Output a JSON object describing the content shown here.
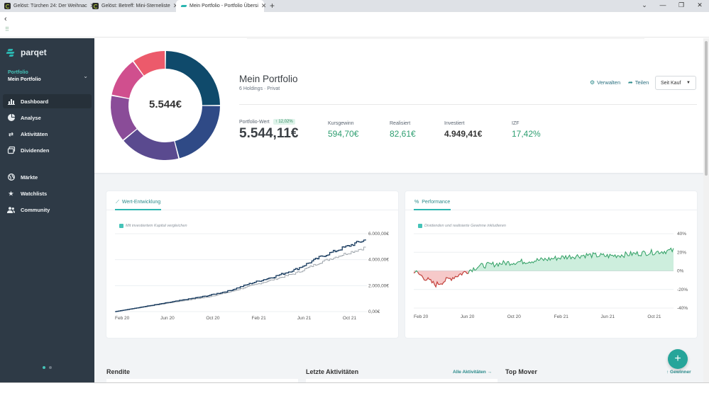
{
  "browser": {
    "tabs": [
      {
        "title": "Gelöst: Türchen 24: Der Weihnac",
        "icon": "community-favicon",
        "active": false
      },
      {
        "title": "Gelöst: Betreff: Mini-Sterneliste",
        "icon": "community-favicon",
        "active": false
      },
      {
        "title": "Mein Portfolio - Portfolio Übersi",
        "icon": "parqet-favicon",
        "active": true
      }
    ],
    "new_tab": "+",
    "back": "‹",
    "apps": "⠿"
  },
  "sidebar": {
    "logo": "parqet",
    "portfolio_label": "Portfolio",
    "portfolio_name": "Mein Portfolio",
    "items": [
      {
        "label": "Dashboard",
        "icon": "chart-bar-icon",
        "active": true
      },
      {
        "label": "Analyse",
        "icon": "pie-chart-icon",
        "active": false
      },
      {
        "label": "Aktivitäten",
        "icon": "transfer-icon",
        "active": false
      },
      {
        "label": "Dividenden",
        "icon": "stack-icon",
        "active": false
      },
      {
        "label": "Märkte",
        "icon": "globe-icon",
        "active": false
      },
      {
        "label": "Watchlists",
        "icon": "star-icon",
        "active": false
      },
      {
        "label": "Community",
        "icon": "users-icon",
        "active": false
      }
    ]
  },
  "header": {
    "donut_center": "5.544€",
    "title": "Mein Portfolio",
    "subtitle": "6 Holdings · Privat",
    "manage": "Verwalten",
    "share": "Teilen",
    "timeframe": "Seit Kauf"
  },
  "donut": {
    "slices": [
      {
        "share": 0.25,
        "color": "#0f4a6b"
      },
      {
        "share": 0.21,
        "color": "#2f4a86"
      },
      {
        "share": 0.18,
        "color": "#5a4a8f"
      },
      {
        "share": 0.14,
        "color": "#8a4c98"
      },
      {
        "share": 0.12,
        "color": "#d04f8e"
      },
      {
        "share": 0.1,
        "color": "#ec5a6b"
      }
    ]
  },
  "kpis": {
    "portfolio_value_label": "Portfolio-Wert",
    "portfolio_value_change": "↑ 12,02%",
    "portfolio_value": "5.544,11€",
    "kursgewinn_label": "Kursgewinn",
    "kursgewinn": "594,70€",
    "realisiert_label": "Realisiert",
    "realisiert": "82,61€",
    "investiert_label": "Investiert",
    "investiert": "4.949,41€",
    "izf_label": "IZF",
    "izf": "17,42%"
  },
  "value_card": {
    "tab": "Wert-Entwicklung",
    "checkbox": "Mit investiertem Kapital vergleichen"
  },
  "perf_card": {
    "tab": "Performance",
    "checkbox": "Dividenden und realisierte Gewinne inkludieren"
  },
  "chart_data": [
    {
      "type": "line",
      "title": "Wert-Entwicklung",
      "x": [
        "Feb 20",
        "Apr 20",
        "Jun 20",
        "Aug 20",
        "Oct 20",
        "Dec 20",
        "Feb 21",
        "Apr 21",
        "Jun 21",
        "Aug 21",
        "Oct 21",
        "Dec 21"
      ],
      "series": [
        {
          "name": "Portfolio-Wert",
          "values": [
            0,
            300,
            600,
            900,
            1200,
            1600,
            2200,
            2700,
            3300,
            4200,
            4900,
            5544
          ]
        },
        {
          "name": "Investiertes Kapital",
          "values": [
            0,
            280,
            560,
            850,
            1100,
            1500,
            2000,
            2500,
            3000,
            3800,
            4400,
            4949
          ]
        }
      ],
      "xticks": [
        "Feb 20",
        "Jun 20",
        "Oct 20",
        "Feb 21",
        "Jun 21",
        "Oct 21"
      ],
      "yticks": [
        "0,00€",
        "2.000,00€",
        "4.000,00€",
        "6.000,00€"
      ],
      "ylim": [
        0,
        6000
      ]
    },
    {
      "type": "area",
      "title": "Performance",
      "x": [
        "Feb 20",
        "Mar 20",
        "Apr 20",
        "Jun 20",
        "Aug 20",
        "Oct 20",
        "Dec 20",
        "Feb 21",
        "Apr 21",
        "Jun 21",
        "Aug 21",
        "Oct 21",
        "Dec 21"
      ],
      "series": [
        {
          "name": "Performance %",
          "values": [
            0,
            -15,
            -5,
            5,
            8,
            10,
            12,
            15,
            17,
            16,
            18,
            20,
            22
          ]
        }
      ],
      "xticks": [
        "Feb 20",
        "Jun 20",
        "Oct 20",
        "Feb 21",
        "Jun 21",
        "Oct 21"
      ],
      "yticks": [
        "40%",
        "20%",
        "0%",
        "-20%",
        "-40%"
      ],
      "ylim": [
        -40,
        40
      ]
    }
  ],
  "bottom": {
    "rendite": "Rendite",
    "activities": "Letzte Aktivitäten",
    "all_activities": "Alle Aktivitäten →",
    "top_mover": "Top Mover",
    "winners": "↑ Gewinner",
    "fab": "+"
  }
}
